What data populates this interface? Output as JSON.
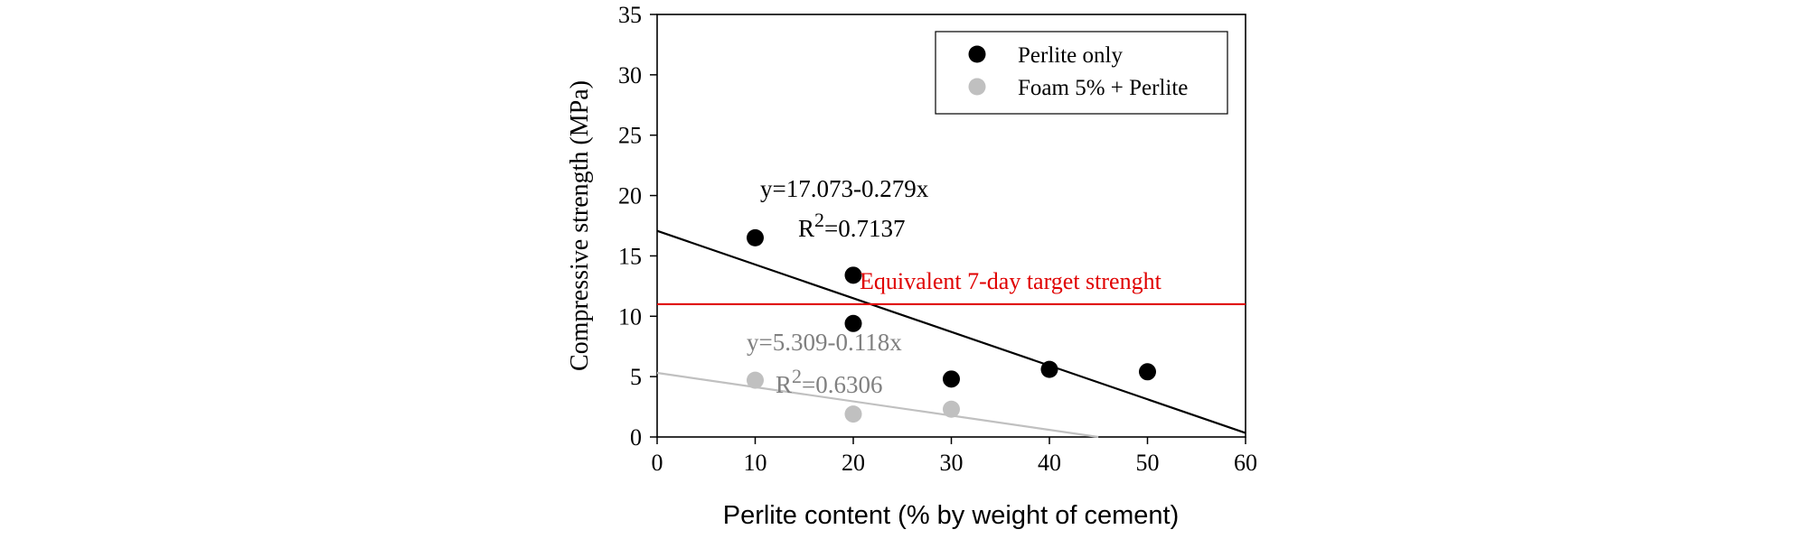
{
  "chart_data": {
    "type": "scatter",
    "xlabel": "Perlite content (% by weight of cement)",
    "ylabel": "Compressive strength (MPa)",
    "xlim": [
      0,
      60
    ],
    "ylim": [
      0,
      35
    ],
    "xticks": [
      0,
      10,
      20,
      30,
      40,
      50,
      60
    ],
    "yticks": [
      0,
      5,
      10,
      15,
      20,
      25,
      30,
      35
    ],
    "grid": false,
    "legend_position": "top-right",
    "series": [
      {
        "name": "Perlite only",
        "color": "#000000",
        "points": [
          {
            "x": 10,
            "y": 16.5
          },
          {
            "x": 20,
            "y": 13.4
          },
          {
            "x": 20,
            "y": 9.4
          },
          {
            "x": 30,
            "y": 4.8
          },
          {
            "x": 40,
            "y": 5.6
          },
          {
            "x": 50,
            "y": 5.4
          }
        ],
        "fit": {
          "intercept": 17.073,
          "slope": -0.279,
          "equation": "y=17.073-0.279x",
          "r2_prefix": "R",
          "r2_sup": "2",
          "r2_value": "=0.7137"
        }
      },
      {
        "name": "Foam 5% + Perlite",
        "color": "#c0c0c0",
        "points": [
          {
            "x": 10,
            "y": 4.7
          },
          {
            "x": 20,
            "y": 1.9
          },
          {
            "x": 30,
            "y": 2.3
          }
        ],
        "fit": {
          "intercept": 5.309,
          "slope": -0.118,
          "equation": "y=5.309-0.118x",
          "r2_prefix": "R",
          "r2_sup": "2",
          "r2_value": "=0.6306"
        }
      }
    ],
    "reference_line": {
      "y": 11,
      "label": "Equivalent 7-day target strenght",
      "color": "#e00000"
    },
    "fit_label_color": "#808080"
  }
}
